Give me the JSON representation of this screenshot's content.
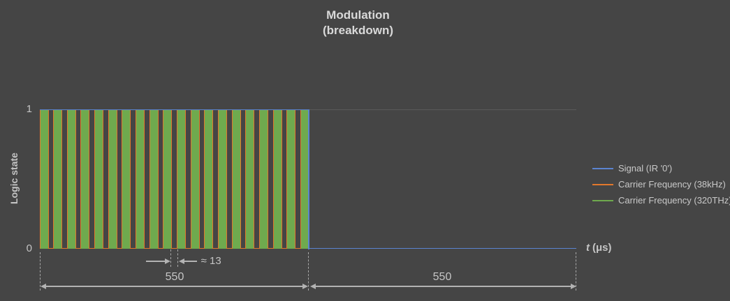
{
  "title": {
    "line1": "Modulation",
    "line2": "(breakdown)"
  },
  "y_axis": {
    "label": "Logic state",
    "tick_high": "1",
    "tick_low": "0"
  },
  "x_axis": {
    "symbol": "t",
    "units": "(μs)"
  },
  "legend": {
    "items": [
      {
        "label": "Signal (IR '0')",
        "color": "#5b84d1"
      },
      {
        "label": "Carrier Frequency (38kHz)",
        "color": "#e2782c"
      },
      {
        "label": "Carrier Frequency (320THz)",
        "color": "#6faa4e"
      }
    ]
  },
  "annotations": {
    "half_period": "≈ 13",
    "segment1": "550",
    "segment2": "550"
  },
  "colors": {
    "background": "#454545",
    "signal_blue": "#5b84d1",
    "carrier38_orange": "#e2782c",
    "carrier320_green": "#6faa4e",
    "grid": "#5a5a5a",
    "dimension": "#b3b3b3"
  },
  "chart_data": {
    "type": "line",
    "title": "Modulation (breakdown)",
    "xlabel": "t (μs)",
    "ylabel": "Logic state",
    "x_range_us": [
      0,
      1100
    ],
    "ylim": [
      0,
      1
    ],
    "yticks": [
      0,
      1
    ],
    "grid": {
      "y_gridline_at": 1
    },
    "legend_position": "right",
    "series": [
      {
        "name": "Signal (IR '0')",
        "color": "#5b84d1",
        "waveform": "step",
        "points_us": [
          [
            0,
            1
          ],
          [
            550,
            1
          ],
          [
            550,
            0
          ],
          [
            1100,
            0
          ]
        ]
      },
      {
        "name": "Carrier Frequency (38kHz)",
        "color": "#e2782c",
        "waveform": "square",
        "half_period_us": 13,
        "pulse_count": 20,
        "active_interval_us": [
          0,
          550
        ],
        "idle_level": 0
      },
      {
        "name": "Carrier Frequency (320THz)",
        "color": "#6faa4e",
        "waveform": "square",
        "active_interval_us": [
          0,
          550
        ],
        "note": "oscillates unresolvably fast; renders as solid fill while the 38kHz carrier is high"
      }
    ],
    "annotations": [
      {
        "text": "≈ 13",
        "meaning": "half-period of 38kHz carrier in μs"
      },
      {
        "text": "550",
        "interval_us": [
          0,
          550
        ]
      },
      {
        "text": "550",
        "interval_us": [
          550,
          1100
        ]
      }
    ]
  }
}
